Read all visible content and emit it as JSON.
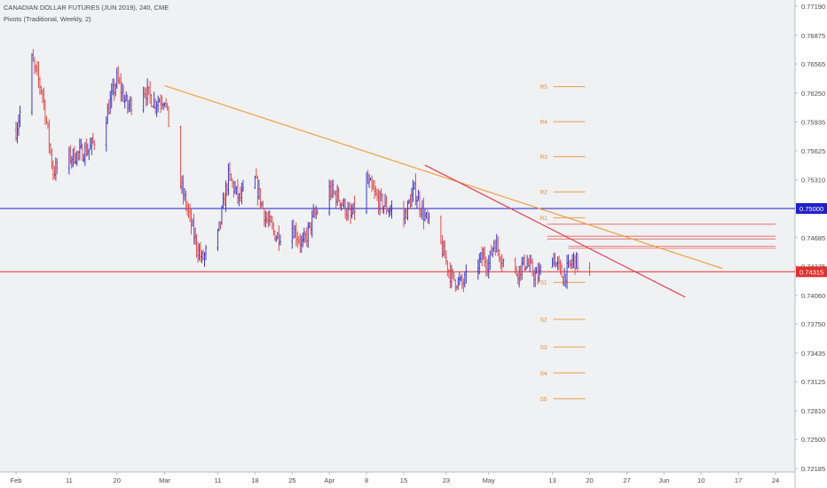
{
  "chart_data": {
    "type": "candlestick",
    "title": "CANADIAN DOLLAR FUTURES (JUN 2019), 240, CME",
    "indicator": "Pivots (Traditional, Weekly, 2)",
    "colors": {
      "up": "#3c3cc8",
      "down": "#e0504f",
      "background": "#f0f1f3",
      "axis_text": "#4a4a4a"
    },
    "y_ticks": [
      "0.77190",
      "0.76875",
      "0.76565",
      "0.76250",
      "0.75935",
      "0.75625",
      "0.75310",
      "0.74685",
      "0.74375",
      "0.74060",
      "0.73750",
      "0.73435",
      "0.73125",
      "0.72810",
      "0.72500",
      "0.72185"
    ],
    "ylim": [
      0.7212,
      0.7725
    ],
    "x_ticks": [
      {
        "label": "Feb",
        "date": "2019-02-01"
      },
      {
        "label": "11",
        "date": "2019-02-11"
      },
      {
        "label": "20",
        "date": "2019-02-20"
      },
      {
        "label": "Mar",
        "date": "2019-03-01"
      },
      {
        "label": "11",
        "date": "2019-03-11"
      },
      {
        "label": "18",
        "date": "2019-03-18"
      },
      {
        "label": "25",
        "date": "2019-03-25"
      },
      {
        "label": "Apr",
        "date": "2019-04-01"
      },
      {
        "label": "8",
        "date": "2019-04-08"
      },
      {
        "label": "15",
        "date": "2019-04-15"
      },
      {
        "label": "23",
        "date": "2019-04-23"
      },
      {
        "label": "May",
        "date": "2019-05-01"
      },
      {
        "label": "13",
        "date": "2019-05-13"
      },
      {
        "label": "20",
        "date": "2019-05-20"
      },
      {
        "label": "27",
        "date": "2019-05-27"
      },
      {
        "label": "Jun",
        "date": "2019-06-03"
      },
      {
        "label": "10",
        "date": "2019-06-10"
      },
      {
        "label": "17",
        "date": "2019-06-17"
      },
      {
        "label": "24",
        "date": "2019-06-24"
      }
    ],
    "price_path": [
      [
        "2019-02-01",
        0.7585
      ],
      [
        "2019-02-04",
        0.766
      ],
      [
        "2019-02-06",
        0.7625
      ],
      [
        "2019-02-08",
        0.754
      ],
      [
        "2019-02-11",
        0.7555
      ],
      [
        "2019-02-13",
        0.756
      ],
      [
        "2019-02-15",
        0.7565
      ],
      [
        "2019-02-18",
        0.76
      ],
      [
        "2019-02-20",
        0.764
      ],
      [
        "2019-02-22",
        0.761
      ],
      [
        "2019-02-25",
        0.763
      ],
      [
        "2019-02-27",
        0.7615
      ],
      [
        "2019-03-01",
        0.762
      ],
      [
        "2019-03-03",
        0.7545
      ],
      [
        "2019-03-05",
        0.7505
      ],
      [
        "2019-03-07",
        0.746
      ],
      [
        "2019-03-08",
        0.7445
      ],
      [
        "2019-03-11",
        0.747
      ],
      [
        "2019-03-13",
        0.7535
      ],
      [
        "2019-03-15",
        0.751
      ],
      [
        "2019-03-18",
        0.753
      ],
      [
        "2019-03-20",
        0.749
      ],
      [
        "2019-03-22",
        0.747
      ],
      [
        "2019-03-25",
        0.748
      ],
      [
        "2019-03-27",
        0.746
      ],
      [
        "2019-03-29",
        0.749
      ],
      [
        "2019-04-01",
        0.752
      ],
      [
        "2019-04-03",
        0.751
      ],
      [
        "2019-04-05",
        0.749
      ],
      [
        "2019-04-08",
        0.753
      ],
      [
        "2019-04-10",
        0.751
      ],
      [
        "2019-04-12",
        0.75
      ],
      [
        "2019-04-15",
        0.749
      ],
      [
        "2019-04-17",
        0.752
      ],
      [
        "2019-04-19",
        0.749
      ],
      [
        "2019-04-22",
        0.746
      ],
      [
        "2019-04-24",
        0.7425
      ],
      [
        "2019-04-26",
        0.7418
      ],
      [
        "2019-04-29",
        0.744
      ],
      [
        "2019-04-30",
        0.7448
      ],
      [
        "2019-05-01",
        0.744
      ],
      [
        "2019-05-02",
        0.7465
      ],
      [
        "2019-05-04",
        0.744
      ],
      [
        "2019-05-06",
        0.743
      ],
      [
        "2019-05-08",
        0.7442
      ],
      [
        "2019-05-10",
        0.7425
      ],
      [
        "2019-05-13",
        0.745
      ],
      [
        "2019-05-15",
        0.7425
      ],
      [
        "2019-05-17",
        0.7445
      ],
      [
        "2019-05-20",
        0.7428
      ]
    ],
    "horizontal_levels": [
      {
        "value": 0.75,
        "label": "0.75000",
        "color": "#2020c8"
      },
      {
        "value": 0.74315,
        "label": "0.74315",
        "color": "#e03030"
      }
    ],
    "pivots": [
      {
        "label": "R5",
        "value": 0.7632
      },
      {
        "label": "R4",
        "value": 0.7594
      },
      {
        "label": "R3",
        "value": 0.7556
      },
      {
        "label": "R2",
        "value": 0.7518
      },
      {
        "label": "R1",
        "value": 0.749
      },
      {
        "label": "S1",
        "value": 0.742
      },
      {
        "label": "S2",
        "value": 0.738
      },
      {
        "label": "S3",
        "value": 0.735
      },
      {
        "label": "S4",
        "value": 0.7322
      },
      {
        "label": "S5",
        "value": 0.7294
      }
    ],
    "pivot_range": [
      "2019-05-13",
      "2019-05-20"
    ],
    "trendlines": [
      {
        "from": [
          "2019-03-01",
          0.7633
        ],
        "to": [
          "2019-06-14",
          0.7435
        ],
        "color": "#f0a040"
      },
      {
        "from": [
          "2019-04-19",
          0.7547
        ],
        "to": [
          "2019-06-07",
          0.7404
        ],
        "color": "#e04050"
      }
    ],
    "resistance_zones": [
      {
        "from": "2019-05-12",
        "to": "2019-06-24",
        "values": [
          0.7483,
          0.747,
          0.7467
        ]
      },
      {
        "from": "2019-05-16",
        "to": "2019-06-24",
        "values": [
          0.7459,
          0.7457
        ]
      }
    ],
    "grid": false
  }
}
